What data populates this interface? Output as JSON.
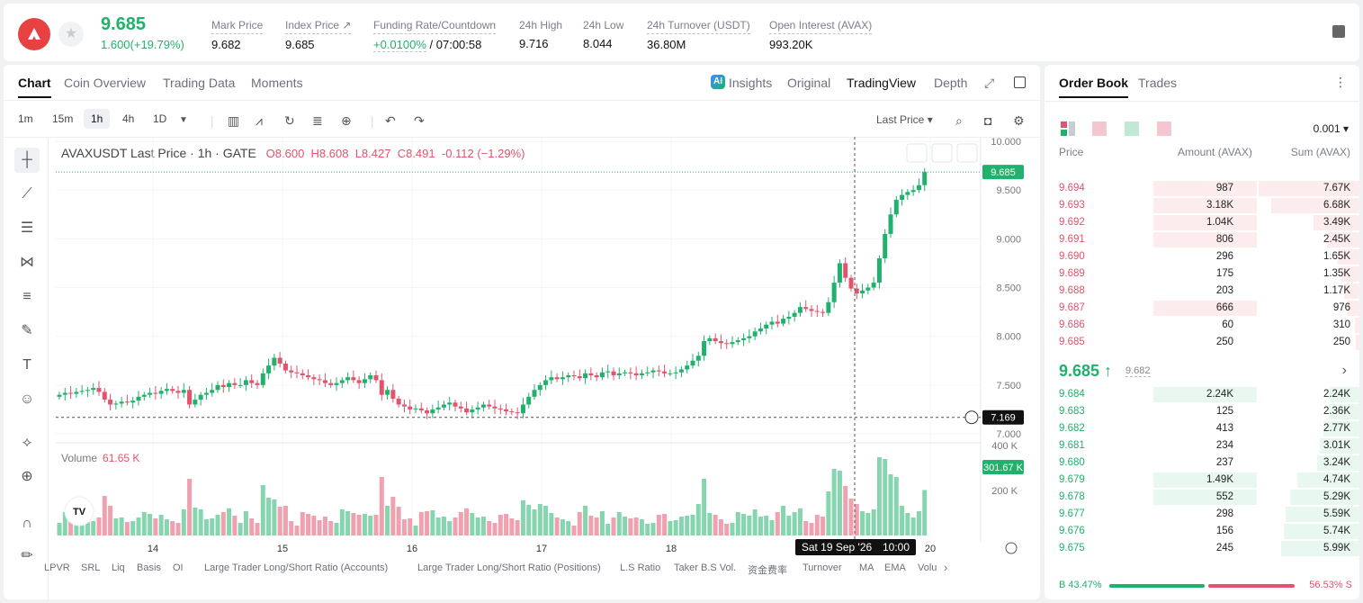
{
  "header": {
    "price": "9.685",
    "change": "1.600(+19.79%)",
    "stats": [
      {
        "label": "Mark Price",
        "value": "9.682"
      },
      {
        "label": "Index Price ↗",
        "value": "9.685"
      },
      {
        "label": "Funding Rate/Countdown",
        "value_green": "+0.0100%",
        "value": " / 07:00:58"
      },
      {
        "label": "24h High",
        "value": "9.716"
      },
      {
        "label": "24h Low",
        "value": "8.044"
      },
      {
        "label": "24h Turnover (USDT)",
        "value": "36.80M"
      },
      {
        "label": "Open Interest (AVAX)",
        "value": "993.20K"
      }
    ]
  },
  "chart_tabs": [
    "Chart",
    "Coin Overview",
    "Trading Data",
    "Moments"
  ],
  "view_tabs": [
    "Insights",
    "Original",
    "TradingView",
    "Depth"
  ],
  "timeframes": [
    "1m",
    "15m",
    "1h",
    "4h",
    "1D"
  ],
  "last_price_label": "Last Price",
  "legend": {
    "title": "AVAXUSDT Last Price · 1h · GATE",
    "o": "O8.600",
    "h": "H8.608",
    "l": "L8.427",
    "c": "C8.491",
    "chg": "-0.112 (−1.29%)"
  },
  "volume_label": "Volume",
  "volume_value": "61.65 K",
  "price_tag": "9.685",
  "cross_price": "7.169",
  "vol_tag": "301.67 K",
  "cross_time": "Sat 19 Sep '26",
  "cross_hour": "10:00",
  "y_ticks": [
    "10.000",
    "9.500",
    "9.000",
    "8.500",
    "8.000",
    "7.500",
    "7.000"
  ],
  "vol_ticks": [
    "400 K",
    "200 K"
  ],
  "x_ticks": [
    "14",
    "15",
    "16",
    "17",
    "18",
    "20"
  ],
  "bottom_tools": [
    "LPVR",
    "SRL",
    "Liq",
    "Basis",
    "OI",
    "Large Trader Long/Short Ratio (Accounts)",
    "Large Trader Long/Short Ratio (Positions)",
    "L.S Ratio",
    "Taker B.S Vol.",
    "资金费率",
    "Turnover",
    "MA",
    "EMA",
    "Volu"
  ],
  "chart_data": {
    "type": "candlestick",
    "ylim": [
      6.9,
      10.0
    ],
    "closes": [
      7.4,
      7.42,
      7.41,
      7.43,
      7.44,
      7.45,
      7.47,
      7.43,
      7.35,
      7.3,
      7.31,
      7.33,
      7.32,
      7.34,
      7.38,
      7.4,
      7.42,
      7.41,
      7.44,
      7.46,
      7.44,
      7.42,
      7.45,
      7.3,
      7.35,
      7.4,
      7.42,
      7.45,
      7.5,
      7.48,
      7.52,
      7.5,
      7.5,
      7.55,
      7.52,
      7.5,
      7.62,
      7.7,
      7.78,
      7.72,
      7.65,
      7.63,
      7.62,
      7.6,
      7.58,
      7.56,
      7.55,
      7.52,
      7.5,
      7.52,
      7.55,
      7.58,
      7.55,
      7.52,
      7.56,
      7.6,
      7.55,
      7.4,
      7.45,
      7.36,
      7.3,
      7.28,
      7.25,
      7.26,
      7.24,
      7.21,
      7.25,
      7.27,
      7.3,
      7.32,
      7.28,
      7.26,
      7.22,
      7.25,
      7.27,
      7.3,
      7.28,
      7.26,
      7.25,
      7.23,
      7.22,
      7.21,
      7.3,
      7.38,
      7.45,
      7.5,
      7.55,
      7.58,
      7.56,
      7.58,
      7.6,
      7.59,
      7.57,
      7.62,
      7.6,
      7.58,
      7.63,
      7.64,
      7.6,
      7.62,
      7.63,
      7.62,
      7.6,
      7.62,
      7.63,
      7.65,
      7.64,
      7.62,
      7.62,
      7.63,
      7.66,
      7.7,
      7.75,
      7.8,
      7.95,
      7.98,
      7.95,
      7.93,
      7.92,
      7.94,
      7.96,
      7.98,
      8.0,
      8.05,
      8.08,
      8.12,
      8.15,
      8.13,
      8.18,
      8.2,
      8.24,
      8.3,
      8.28,
      8.26,
      8.25,
      8.24,
      8.35,
      8.55,
      8.75,
      8.6,
      8.49,
      8.44,
      8.47,
      8.5,
      8.55,
      8.8,
      9.05,
      9.25,
      9.4,
      9.45,
      9.48,
      9.5,
      9.55,
      9.685
    ],
    "volume_ticks": [
      400000,
      200000
    ]
  },
  "order_book": {
    "tabs": [
      "Order Book",
      "Trades"
    ],
    "precision": "0.001",
    "headers": [
      "Price",
      "Amount (AVAX)",
      "Sum (AVAX)"
    ],
    "asks": [
      [
        "9.694",
        "987",
        "7.67K"
      ],
      [
        "9.693",
        "3.18K",
        "6.68K"
      ],
      [
        "9.692",
        "1.04K",
        "3.49K"
      ],
      [
        "9.691",
        "806",
        "2.45K"
      ],
      [
        "9.690",
        "296",
        "1.65K"
      ],
      [
        "9.689",
        "175",
        "1.35K"
      ],
      [
        "9.688",
        "203",
        "1.17K"
      ],
      [
        "9.687",
        "666",
        "976"
      ],
      [
        "9.686",
        "60",
        "310"
      ],
      [
        "9.685",
        "250",
        "250"
      ]
    ],
    "mid": "9.685 ↑",
    "mid_sub": "9.682",
    "bids": [
      [
        "9.684",
        "2.24K",
        "2.24K"
      ],
      [
        "9.683",
        "125",
        "2.36K"
      ],
      [
        "9.682",
        "413",
        "2.77K"
      ],
      [
        "9.681",
        "234",
        "3.01K"
      ],
      [
        "9.680",
        "237",
        "3.24K"
      ],
      [
        "9.679",
        "1.49K",
        "4.74K"
      ],
      [
        "9.678",
        "552",
        "5.29K"
      ],
      [
        "9.677",
        "298",
        "5.59K"
      ],
      [
        "9.676",
        "156",
        "5.74K"
      ],
      [
        "9.675",
        "245",
        "5.99K"
      ]
    ],
    "buy_ratio": "B 43.47%",
    "sell_ratio": "56.53% S",
    "colors": {
      "up": "#20b26c",
      "down": "#e2536d"
    }
  }
}
